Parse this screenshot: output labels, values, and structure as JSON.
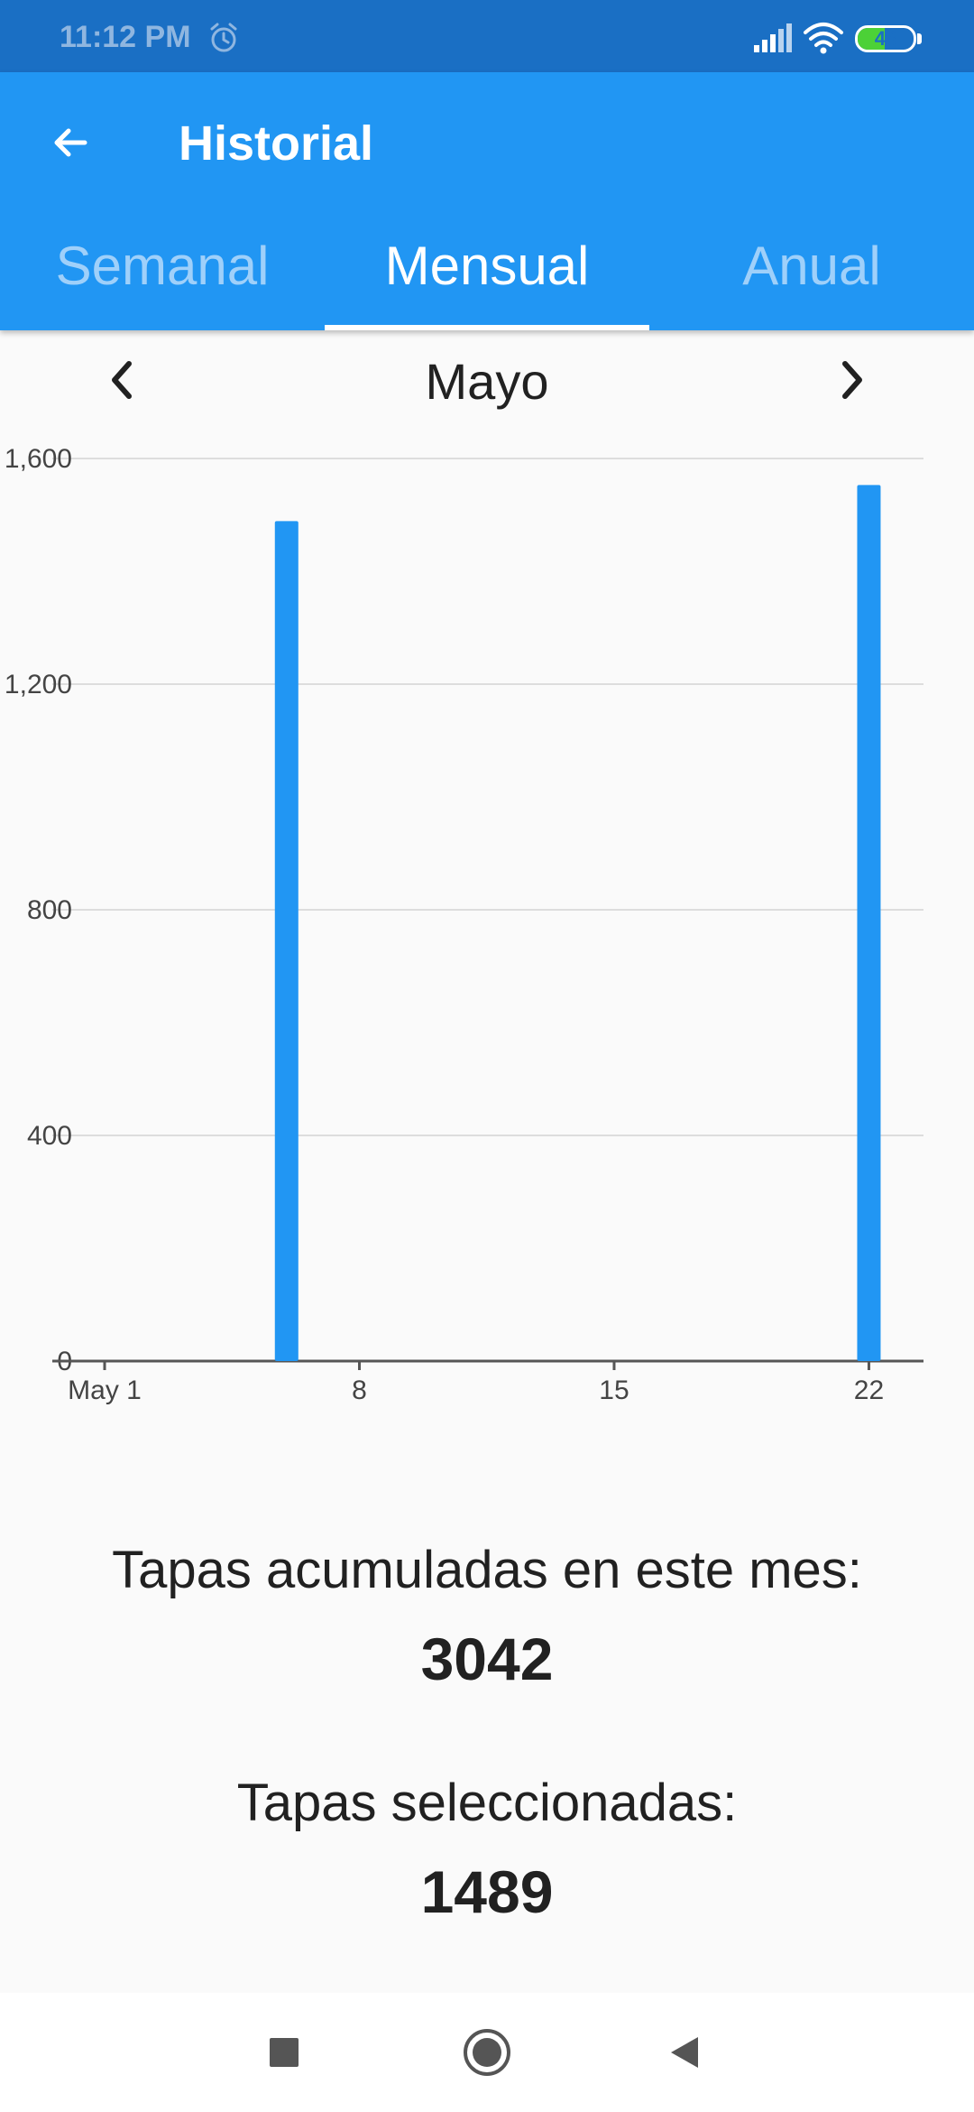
{
  "status_bar": {
    "time": "11:12 PM",
    "battery": "48",
    "battery_level": 0.48,
    "icons": [
      "alarm-icon",
      "signal-icon",
      "wifi-icon",
      "battery-icon"
    ]
  },
  "app_bar": {
    "title": "Historial",
    "back_icon": "arrow-left-icon",
    "tabs": [
      {
        "label": "Semanal",
        "active": false
      },
      {
        "label": "Mensual",
        "active": true
      },
      {
        "label": "Anual",
        "active": false
      }
    ]
  },
  "month_nav": {
    "label": "Mayo",
    "prev_icon": "chevron-left-icon",
    "next_icon": "chevron-right-icon"
  },
  "chart_data": {
    "type": "bar",
    "x": [
      6,
      22
    ],
    "values": [
      1489,
      1553
    ],
    "x_ticks": [
      {
        "value": 1,
        "label": "May 1"
      },
      {
        "value": 8,
        "label": "8"
      },
      {
        "value": 15,
        "label": "15"
      },
      {
        "value": 22,
        "label": "22"
      }
    ],
    "y_ticks": [
      {
        "value": 0,
        "label": "0"
      },
      {
        "value": 400,
        "label": "400"
      },
      {
        "value": 800,
        "label": "800"
      },
      {
        "value": 1200,
        "label": "1,200"
      },
      {
        "value": 1600,
        "label": "1,600"
      }
    ],
    "ylim": [
      0,
      1600
    ],
    "xlim": [
      1,
      23.5
    ],
    "grid": true,
    "bar_color": "#2196f3"
  },
  "summary": {
    "accumulated_label": "Tapas acumuladas en este mes:",
    "accumulated_value": "3042",
    "selected_label": "Tapas seleccionadas:",
    "selected_value": "1489"
  },
  "colors": {
    "primary": "#2196f3",
    "status_bar": "#1a6fc4",
    "background": "#fafafa"
  },
  "system_nav": [
    "recents-square-icon",
    "home-circle-icon",
    "back-triangle-icon"
  ]
}
